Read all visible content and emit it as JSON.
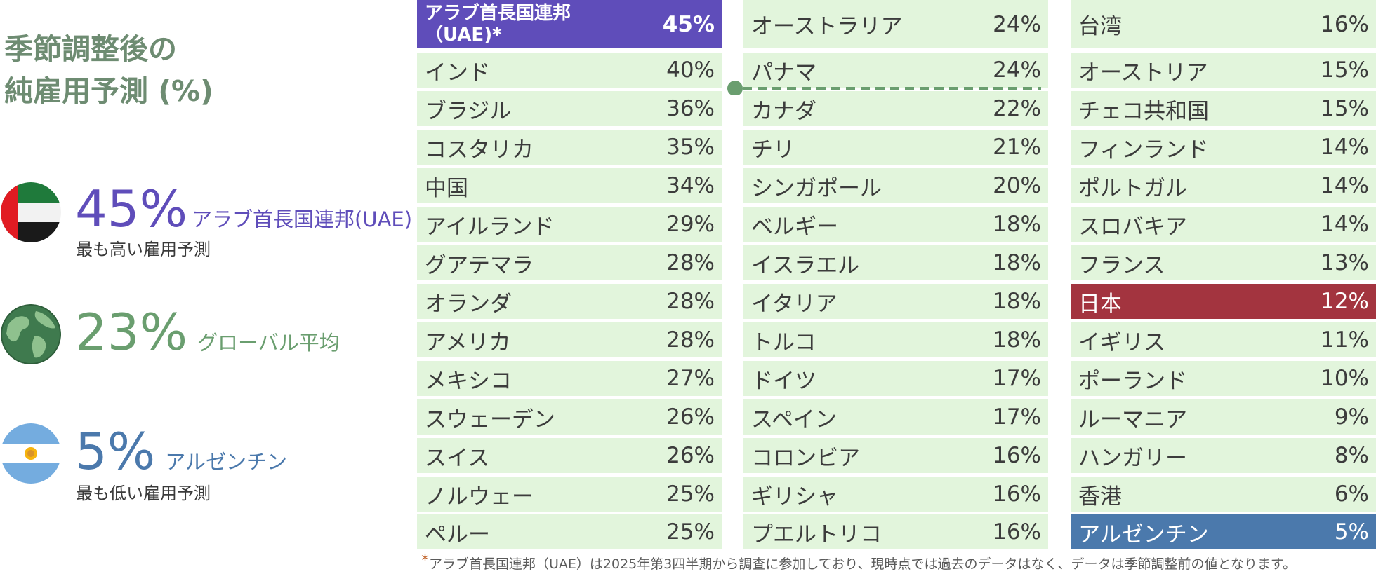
{
  "title": {
    "line1": "季節調整後の",
    "line2": "純雇用予測 (%)"
  },
  "highlights": [
    {
      "value": "45%",
      "country": "アラブ首長国連邦(UAE)",
      "note": "最も高い雇用予測",
      "color": "#5f4dba",
      "icon": "uae-flag-icon"
    },
    {
      "value": "23%",
      "country": "グローバル平均",
      "note": "",
      "color": "#6a9e6f",
      "icon": "globe-icon"
    },
    {
      "value": "5%",
      "country": "アルゼンチン",
      "note": "最も低い雇用予測",
      "color": "#4b79ac",
      "icon": "argentina-flag-icon"
    }
  ],
  "colors": {
    "highest": "#5f4dba",
    "japan": "#a3343f",
    "lowest": "#4b79ac",
    "cell": "#e2f5dc",
    "global_average": "#6a9e6f"
  },
  "chart_data": {
    "type": "table",
    "title": "季節調整後の純雇用予測 (%)",
    "global_average": 23,
    "columns": [
      [
        {
          "country": "アラブ首長国連邦\n（UAE)*",
          "value": "45%",
          "highlight": "highest"
        },
        {
          "country": "インド",
          "value": "40%"
        },
        {
          "country": "ブラジル",
          "value": "36%"
        },
        {
          "country": "コスタリカ",
          "value": "35%"
        },
        {
          "country": "中国",
          "value": "34%"
        },
        {
          "country": "アイルランド",
          "value": "29%"
        },
        {
          "country": "グアテマラ",
          "value": "28%"
        },
        {
          "country": "オランダ",
          "value": "28%"
        },
        {
          "country": "アメリカ",
          "value": "28%"
        },
        {
          "country": "メキシコ",
          "value": "27%"
        },
        {
          "country": "スウェーデン",
          "value": "26%"
        },
        {
          "country": "スイス",
          "value": "26%"
        },
        {
          "country": "ノルウェー",
          "value": "25%"
        },
        {
          "country": "ペルー",
          "value": "25%"
        }
      ],
      [
        {
          "country": "オーストラリア",
          "value": "24%"
        },
        {
          "country": "パナマ",
          "value": "24%"
        },
        {
          "country": "カナダ",
          "value": "22%"
        },
        {
          "country": "チリ",
          "value": "21%"
        },
        {
          "country": "シンガポール",
          "value": "20%"
        },
        {
          "country": "ベルギー",
          "value": "18%"
        },
        {
          "country": "イスラエル",
          "value": "18%"
        },
        {
          "country": "イタリア",
          "value": "18%"
        },
        {
          "country": "トルコ",
          "value": "18%"
        },
        {
          "country": "ドイツ",
          "value": "17%"
        },
        {
          "country": "スペイン",
          "value": "17%"
        },
        {
          "country": "コロンビア",
          "value": "16%"
        },
        {
          "country": "ギリシャ",
          "value": "16%"
        },
        {
          "country": "プエルトリコ",
          "value": "16%"
        }
      ],
      [
        {
          "country": "台湾",
          "value": "16%"
        },
        {
          "country": "オーストリア",
          "value": "15%"
        },
        {
          "country": "チェコ共和国",
          "value": "15%"
        },
        {
          "country": "フィンランド",
          "value": "14%"
        },
        {
          "country": "ポルトガル",
          "value": "14%"
        },
        {
          "country": "スロバキア",
          "value": "14%"
        },
        {
          "country": "フランス",
          "value": "13%"
        },
        {
          "country": "日本",
          "value": "12%",
          "highlight": "japan"
        },
        {
          "country": "イギリス",
          "value": "11%"
        },
        {
          "country": "ポーランド",
          "value": "10%"
        },
        {
          "country": "ルーマニア",
          "value": "9%"
        },
        {
          "country": "ハンガリー",
          "value": "8%"
        },
        {
          "country": "香港",
          "value": "6%"
        },
        {
          "country": "アルゼンチン",
          "value": "5%",
          "highlight": "lowest"
        }
      ]
    ]
  },
  "footnote": {
    "marker": "*",
    "text": "アラブ首長国連邦（UAE）は2025年第3四半期から調査に参加しており、現時点では過去のデータはなく、データは季節調整前の値となります。"
  }
}
